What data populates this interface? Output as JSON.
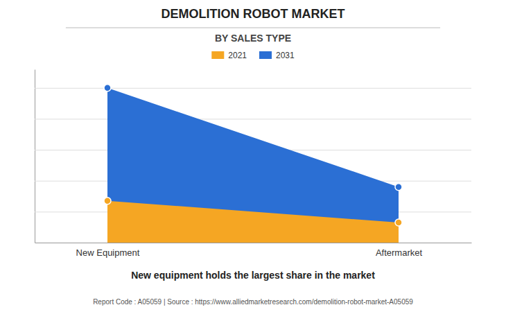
{
  "chart_data": {
    "type": "area",
    "title": "DEMOLITION ROBOT MARKET",
    "subtitle": "BY SALES TYPE",
    "annotations": [
      "New equipment holds the largest share in the market",
      "Report Code : A05059  |  Source : https://www.alliedmarketresearch.com/demolition-robot-market-A05059"
    ],
    "categories": [
      "New Equipment",
      "Aftermarket"
    ],
    "series": [
      {
        "name": "2021",
        "color": "#F5A623",
        "values": [
          0.27,
          0.13
        ],
        "marker": "circle"
      },
      {
        "name": "2031",
        "color": "#2B6FD4",
        "values": [
          1.0,
          0.36
        ],
        "marker": "circle"
      }
    ],
    "ylim": [
      0,
      1.12
    ],
    "yticks": [
      0.2,
      0.4,
      0.6,
      0.8,
      1.0
    ],
    "grid": true,
    "tick_labels": "x"
  }
}
